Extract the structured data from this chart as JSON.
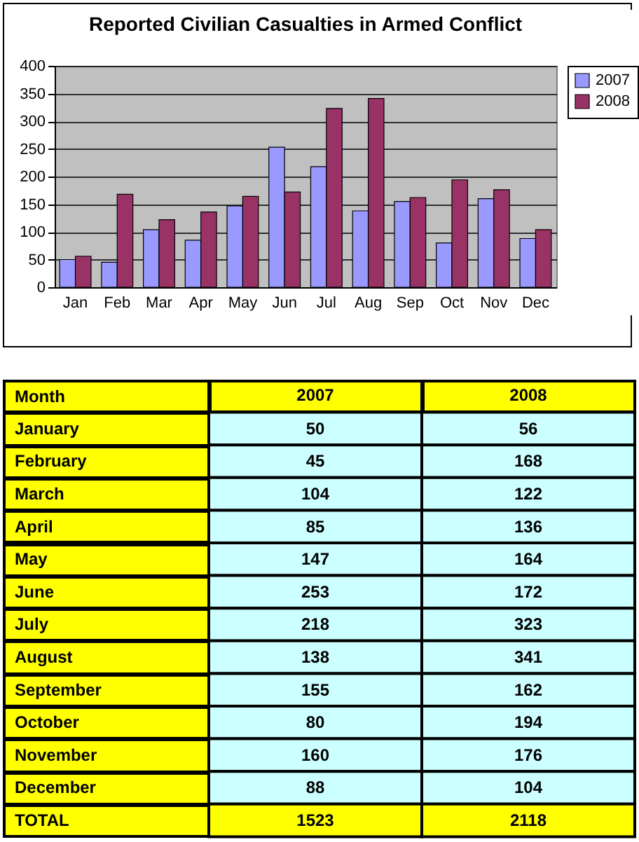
{
  "chart_data": [
    {
      "type": "bar",
      "title": "Reported Civilian Casualties in Armed Conflict",
      "categories": [
        "Jan",
        "Feb",
        "Mar",
        "Apr",
        "May",
        "Jun",
        "Jul",
        "Aug",
        "Sep",
        "Oct",
        "Nov",
        "Dec"
      ],
      "series": [
        {
          "name": "2007",
          "color": "#9999ff",
          "values": [
            50,
            45,
            104,
            85,
            147,
            253,
            218,
            138,
            155,
            80,
            160,
            88
          ]
        },
        {
          "name": "2008",
          "color": "#993366",
          "values": [
            56,
            168,
            122,
            136,
            164,
            172,
            323,
            341,
            162,
            194,
            176,
            104
          ]
        }
      ],
      "ylim": [
        0,
        400
      ],
      "yticks": [
        0,
        50,
        100,
        150,
        200,
        250,
        300,
        350,
        400
      ],
      "grid": "y",
      "legend": "right"
    },
    {
      "type": "heatmap",
      "ylabel": "Month",
      "categories": [
        "2007",
        "2008"
      ],
      "y_categories": [
        "January",
        "February",
        "March",
        "April",
        "May",
        "June",
        "July",
        "August",
        "September",
        "October",
        "November",
        "December",
        "TOTAL"
      ],
      "cells": [
        [
          50,
          56
        ],
        [
          45,
          168
        ],
        [
          104,
          122
        ],
        [
          85,
          136
        ],
        [
          147,
          164
        ],
        [
          253,
          172
        ],
        [
          218,
          323
        ],
        [
          138,
          341
        ],
        [
          155,
          162
        ],
        [
          80,
          194
        ],
        [
          160,
          176
        ],
        [
          88,
          104
        ],
        [
          1523,
          2118
        ]
      ],
      "data_labels": true
    }
  ]
}
